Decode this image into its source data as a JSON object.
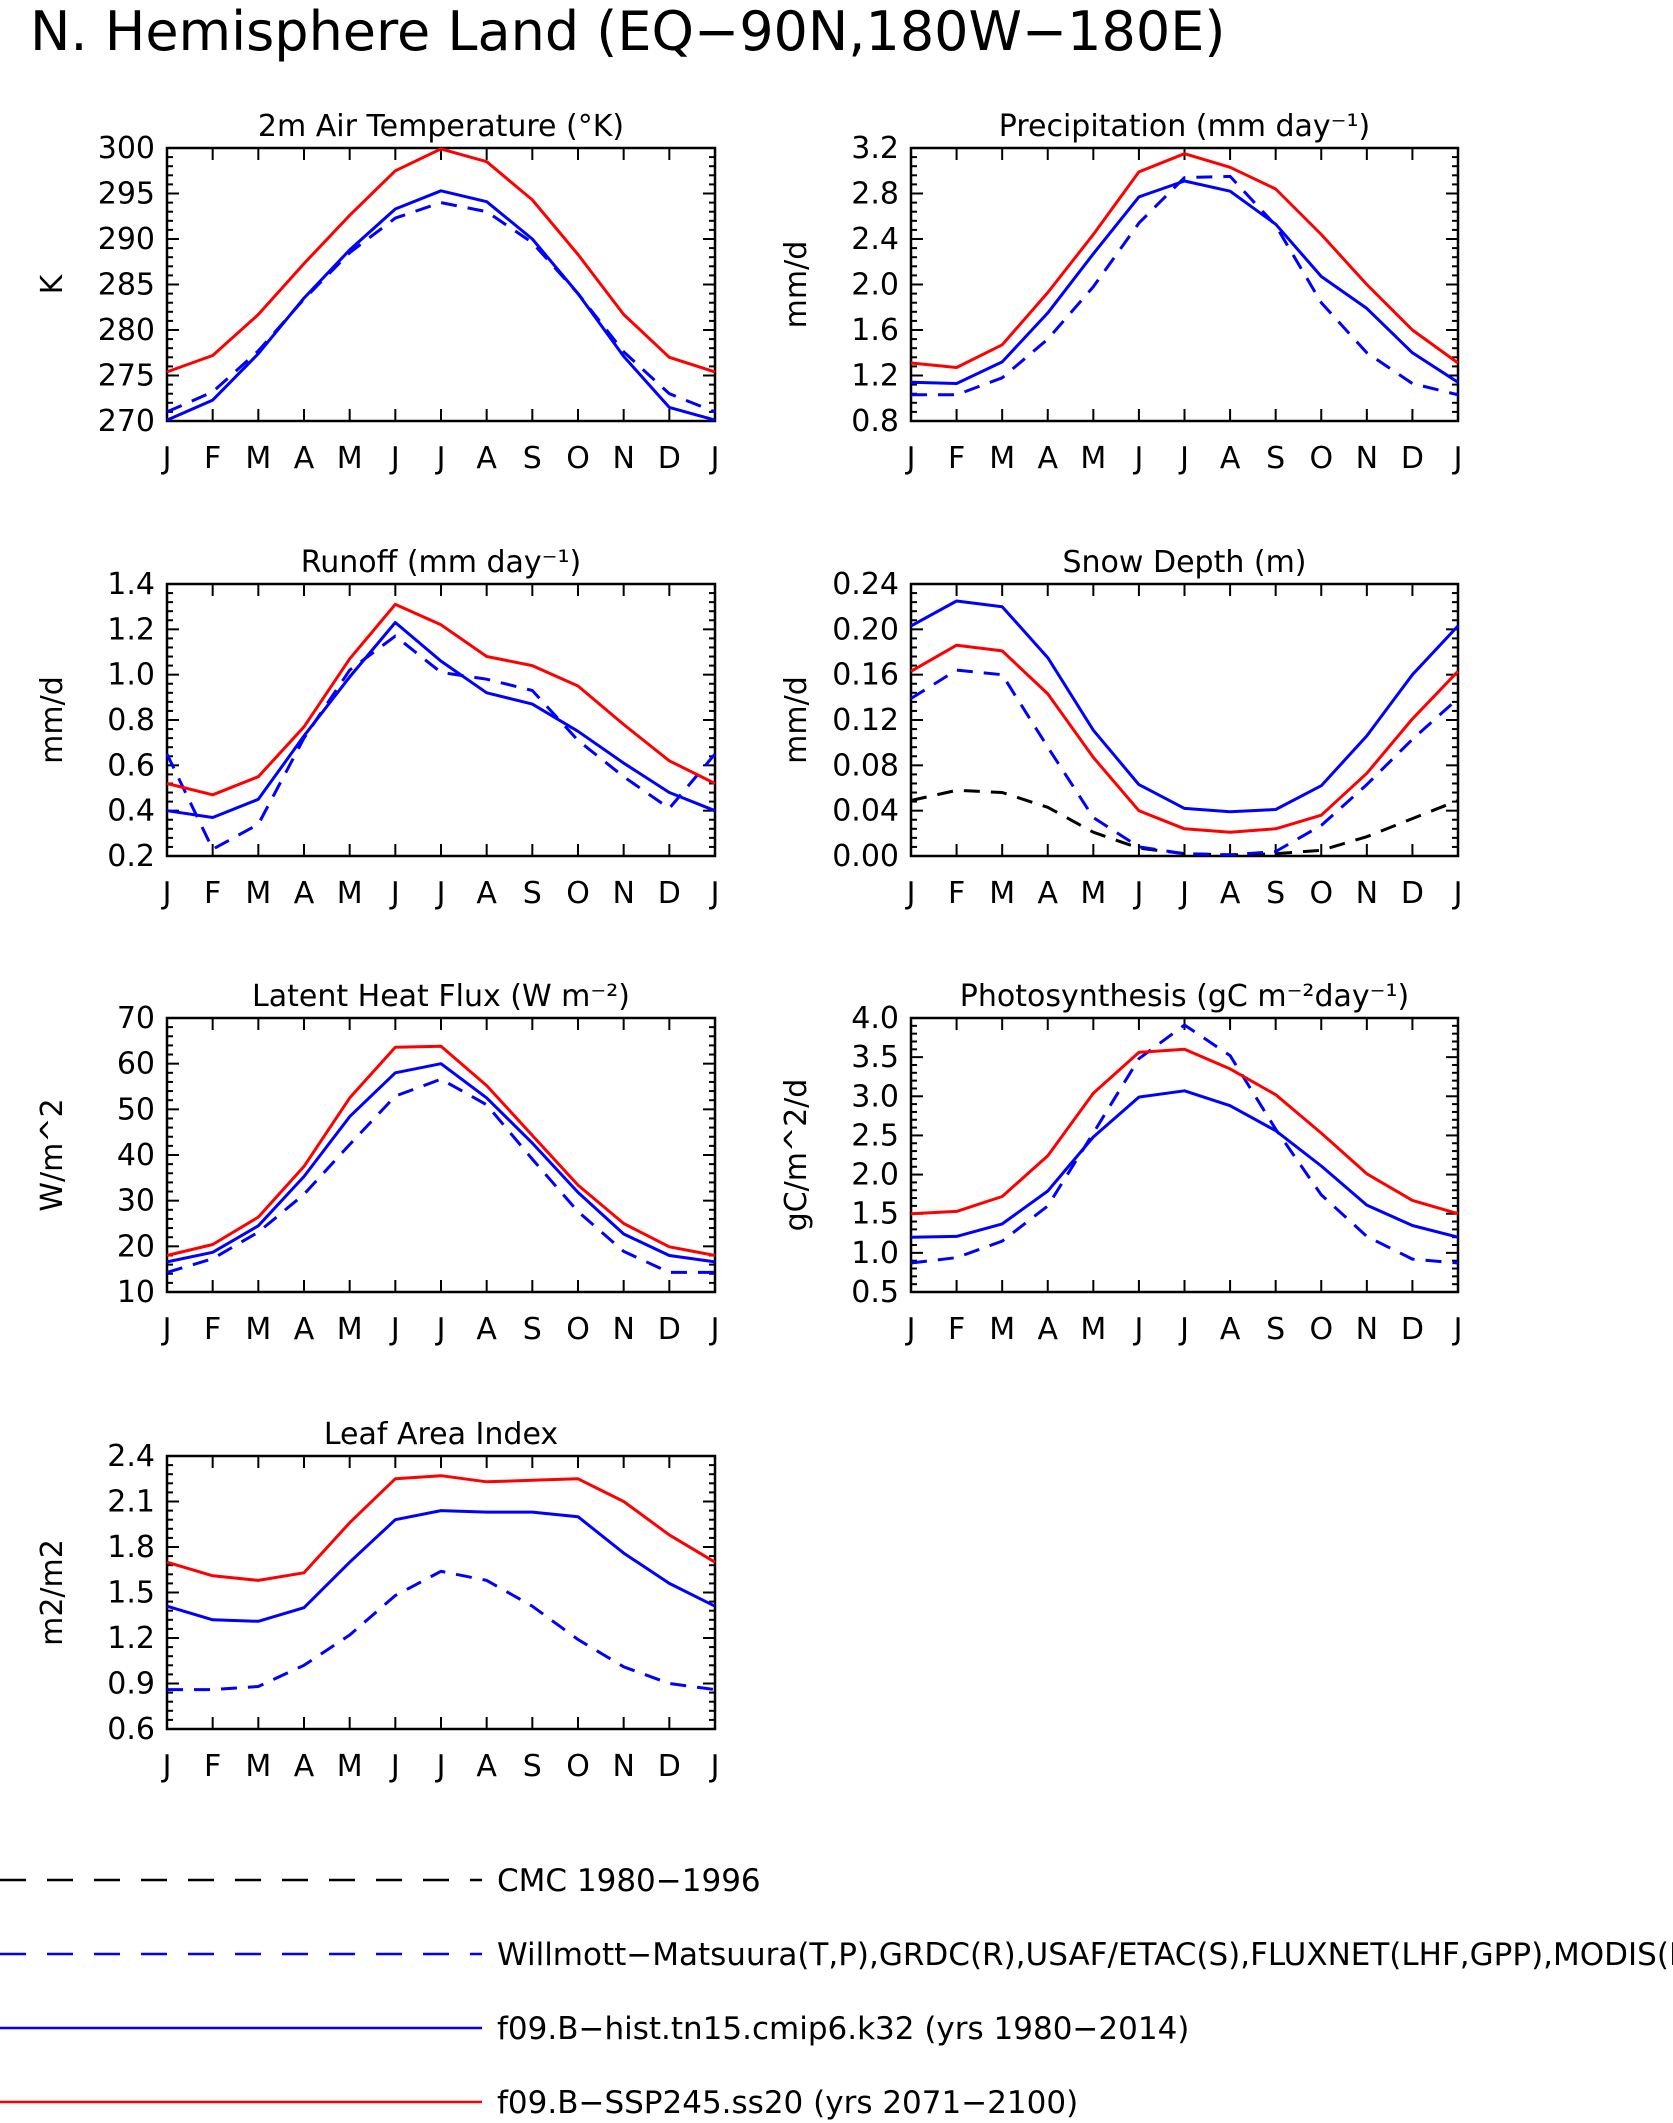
{
  "page_title": "N. Hemisphere Land (EQ−90N,180W−180E)",
  "legend": [
    {
      "label": "CMC 1980−1996",
      "color": "#000000",
      "dash": "dashed"
    },
    {
      "label": "Willmott−Matsuura(T,P),GRDC(R),USAF/ETAC(S),FLUXNET(LHF,GPP),MODIS(L",
      "color": "#0000ff",
      "dash": "dashed"
    },
    {
      "label": "f09.B−hist.tn15.cmip6.k32 (yrs 1980−2014)",
      "color": "#0000ff",
      "dash": "solid"
    },
    {
      "label": "f09.B−SSP245.ss20 (yrs 2071−2100)",
      "color": "#ff0000",
      "dash": "solid"
    }
  ],
  "chart_data": [
    {
      "type": "line",
      "title": "2m Air Temperature (°K)",
      "ylabel": "K",
      "categories": [
        "J",
        "F",
        "M",
        "A",
        "M",
        "J",
        "J",
        "A",
        "S",
        "O",
        "N",
        "D",
        "J"
      ],
      "ylim": [
        270,
        300
      ],
      "yticks": [
        "270",
        "275",
        "280",
        "285",
        "290",
        "295",
        "300"
      ],
      "series": [
        {
          "color": "#0000ff",
          "dash": "dashed",
          "values": [
            271.0,
            273.2,
            277.7,
            283.4,
            288.5,
            292.3,
            294.0,
            293.0,
            289.6,
            284.0,
            277.6,
            273.0,
            271.0
          ]
        },
        {
          "color": "#0000ff",
          "dash": "solid",
          "values": [
            270.1,
            272.3,
            277.4,
            283.5,
            288.8,
            293.3,
            295.3,
            294.1,
            290.0,
            284.0,
            277.1,
            271.5,
            270.1
          ]
        },
        {
          "color": "#ff0000",
          "dash": "solid",
          "values": [
            275.4,
            277.2,
            281.7,
            287.3,
            292.6,
            297.5,
            299.9,
            298.5,
            294.3,
            288.3,
            281.7,
            277.0,
            275.4
          ]
        }
      ]
    },
    {
      "type": "line",
      "title": "Precipitation (mm day⁻¹)",
      "ylabel": "mm/d",
      "categories": [
        "J",
        "F",
        "M",
        "A",
        "M",
        "J",
        "J",
        "A",
        "S",
        "O",
        "N",
        "D",
        "J"
      ],
      "ylim": [
        0.8,
        3.2
      ],
      "yticks": [
        "0.8",
        "1.2",
        "1.6",
        "2.0",
        "2.4",
        "2.8",
        "3.2"
      ],
      "series": [
        {
          "color": "#0000ff",
          "dash": "dashed",
          "values": [
            1.03,
            1.03,
            1.18,
            1.52,
            1.98,
            2.54,
            2.94,
            2.95,
            2.52,
            1.84,
            1.4,
            1.13,
            1.03
          ]
        },
        {
          "color": "#0000ff",
          "dash": "solid",
          "values": [
            1.14,
            1.13,
            1.32,
            1.75,
            2.27,
            2.77,
            2.91,
            2.82,
            2.53,
            2.07,
            1.79,
            1.4,
            1.14
          ]
        },
        {
          "color": "#ff0000",
          "dash": "solid",
          "values": [
            1.31,
            1.27,
            1.47,
            1.93,
            2.44,
            2.99,
            3.15,
            3.03,
            2.84,
            2.44,
            2.0,
            1.6,
            1.31
          ]
        }
      ]
    },
    {
      "type": "line",
      "title": "Runoff (mm day⁻¹)",
      "ylabel": "mm/d",
      "categories": [
        "J",
        "F",
        "M",
        "A",
        "M",
        "J",
        "J",
        "A",
        "S",
        "O",
        "N",
        "D",
        "J"
      ],
      "ylim": [
        0.2,
        1.4
      ],
      "yticks": [
        "0.2",
        "0.4",
        "0.6",
        "0.8",
        "1.0",
        "1.2",
        "1.4"
      ],
      "series": [
        {
          "color": "#0000ff",
          "dash": "dashed",
          "values": [
            0.65,
            0.23,
            0.34,
            0.72,
            1.02,
            1.17,
            1.01,
            0.98,
            0.93,
            0.71,
            0.55,
            0.41,
            0.65
          ]
        },
        {
          "color": "#0000ff",
          "dash": "solid",
          "values": [
            0.4,
            0.37,
            0.45,
            0.73,
            0.99,
            1.23,
            1.06,
            0.92,
            0.87,
            0.75,
            0.61,
            0.48,
            0.4
          ]
        },
        {
          "color": "#ff0000",
          "dash": "solid",
          "values": [
            0.52,
            0.47,
            0.55,
            0.77,
            1.07,
            1.31,
            1.22,
            1.08,
            1.04,
            0.95,
            0.78,
            0.62,
            0.52
          ]
        }
      ]
    },
    {
      "type": "line",
      "title": "Snow Depth (m)",
      "ylabel": "mm/d",
      "categories": [
        "J",
        "F",
        "M",
        "A",
        "M",
        "J",
        "J",
        "A",
        "S",
        "O",
        "N",
        "D",
        "J"
      ],
      "ylim": [
        0.0,
        0.24
      ],
      "yticks": [
        "0.00",
        "0.04",
        "0.08",
        "0.12",
        "0.16",
        "0.20",
        "0.24"
      ],
      "series": [
        {
          "color": "#000000",
          "dash": "dashed",
          "values": [
            0.049,
            0.058,
            0.056,
            0.043,
            0.021,
            0.007,
            0.002,
            0.001,
            0.002,
            0.005,
            0.017,
            0.033,
            0.049
          ]
        },
        {
          "color": "#0000ff",
          "dash": "dashed",
          "values": [
            0.139,
            0.164,
            0.16,
            0.096,
            0.034,
            0.008,
            0.002,
            0.001,
            0.004,
            0.027,
            0.063,
            0.103,
            0.139
          ]
        },
        {
          "color": "#0000ff",
          "dash": "solid",
          "values": [
            0.203,
            0.225,
            0.22,
            0.175,
            0.111,
            0.063,
            0.042,
            0.039,
            0.041,
            0.062,
            0.106,
            0.16,
            0.203
          ]
        },
        {
          "color": "#ff0000",
          "dash": "solid",
          "values": [
            0.163,
            0.186,
            0.181,
            0.143,
            0.087,
            0.04,
            0.024,
            0.021,
            0.024,
            0.036,
            0.073,
            0.121,
            0.163
          ]
        }
      ]
    },
    {
      "type": "line",
      "title": "Latent Heat Flux (W m⁻²)",
      "ylabel": "W/m^2",
      "categories": [
        "J",
        "F",
        "M",
        "A",
        "M",
        "J",
        "J",
        "A",
        "S",
        "O",
        "N",
        "D",
        "J"
      ],
      "ylim": [
        10,
        70
      ],
      "yticks": [
        "10",
        "20",
        "30",
        "40",
        "50",
        "60",
        "70"
      ],
      "series": [
        {
          "color": "#0000ff",
          "dash": "dashed",
          "values": [
            14.3,
            17.3,
            23.1,
            31.4,
            42.3,
            52.9,
            56.6,
            51.0,
            39.1,
            27.6,
            18.9,
            14.3,
            14.3
          ]
        },
        {
          "color": "#0000ff",
          "dash": "solid",
          "values": [
            16.6,
            18.7,
            24.5,
            35.3,
            48.4,
            58.0,
            60.0,
            52.5,
            42.6,
            31.8,
            22.7,
            18.0,
            16.6
          ]
        },
        {
          "color": "#ff0000",
          "dash": "solid",
          "values": [
            18.0,
            20.4,
            26.4,
            37.5,
            52.5,
            63.6,
            63.8,
            55.2,
            44.3,
            33.4,
            25.0,
            19.9,
            18.0
          ]
        }
      ]
    },
    {
      "type": "line",
      "title": "Photosynthesis (gC m⁻²day⁻¹)",
      "ylabel": "gC/m^2/d",
      "categories": [
        "J",
        "F",
        "M",
        "A",
        "M",
        "J",
        "J",
        "A",
        "S",
        "O",
        "N",
        "D",
        "J"
      ],
      "ylim": [
        0.5,
        4.0
      ],
      "yticks": [
        "0.5",
        "1.0",
        "1.5",
        "2.0",
        "2.5",
        "3.0",
        "3.5",
        "4.0"
      ],
      "series": [
        {
          "color": "#0000ff",
          "dash": "dashed",
          "values": [
            0.87,
            0.94,
            1.15,
            1.6,
            2.53,
            3.48,
            3.91,
            3.52,
            2.58,
            1.74,
            1.21,
            0.92,
            0.87
          ]
        },
        {
          "color": "#0000ff",
          "dash": "solid",
          "values": [
            1.2,
            1.21,
            1.37,
            1.79,
            2.48,
            2.99,
            3.07,
            2.88,
            2.56,
            2.11,
            1.61,
            1.35,
            1.2
          ]
        },
        {
          "color": "#ff0000",
          "dash": "solid",
          "values": [
            1.5,
            1.53,
            1.72,
            2.24,
            3.04,
            3.56,
            3.6,
            3.35,
            3.02,
            2.53,
            2.01,
            1.67,
            1.5
          ]
        }
      ]
    },
    {
      "type": "line",
      "title": "Leaf Area Index",
      "ylabel": "m2/m2",
      "categories": [
        "J",
        "F",
        "M",
        "A",
        "M",
        "J",
        "J",
        "A",
        "S",
        "O",
        "N",
        "D",
        "J"
      ],
      "ylim": [
        0.6,
        2.4
      ],
      "yticks": [
        "0.6",
        "0.9",
        "1.2",
        "1.5",
        "1.8",
        "2.1",
        "2.4"
      ],
      "series": [
        {
          "color": "#0000ff",
          "dash": "dashed",
          "values": [
            0.86,
            0.86,
            0.88,
            1.02,
            1.22,
            1.48,
            1.64,
            1.58,
            1.41,
            1.19,
            1.01,
            0.9,
            0.86
          ]
        },
        {
          "color": "#0000ff",
          "dash": "solid",
          "values": [
            1.41,
            1.32,
            1.31,
            1.4,
            1.7,
            1.98,
            2.04,
            2.03,
            2.03,
            2.0,
            1.76,
            1.56,
            1.41
          ]
        },
        {
          "color": "#ff0000",
          "dash": "solid",
          "values": [
            1.7,
            1.61,
            1.58,
            1.63,
            1.96,
            2.25,
            2.27,
            2.23,
            2.24,
            2.25,
            2.1,
            1.88,
            1.7
          ]
        }
      ]
    }
  ]
}
